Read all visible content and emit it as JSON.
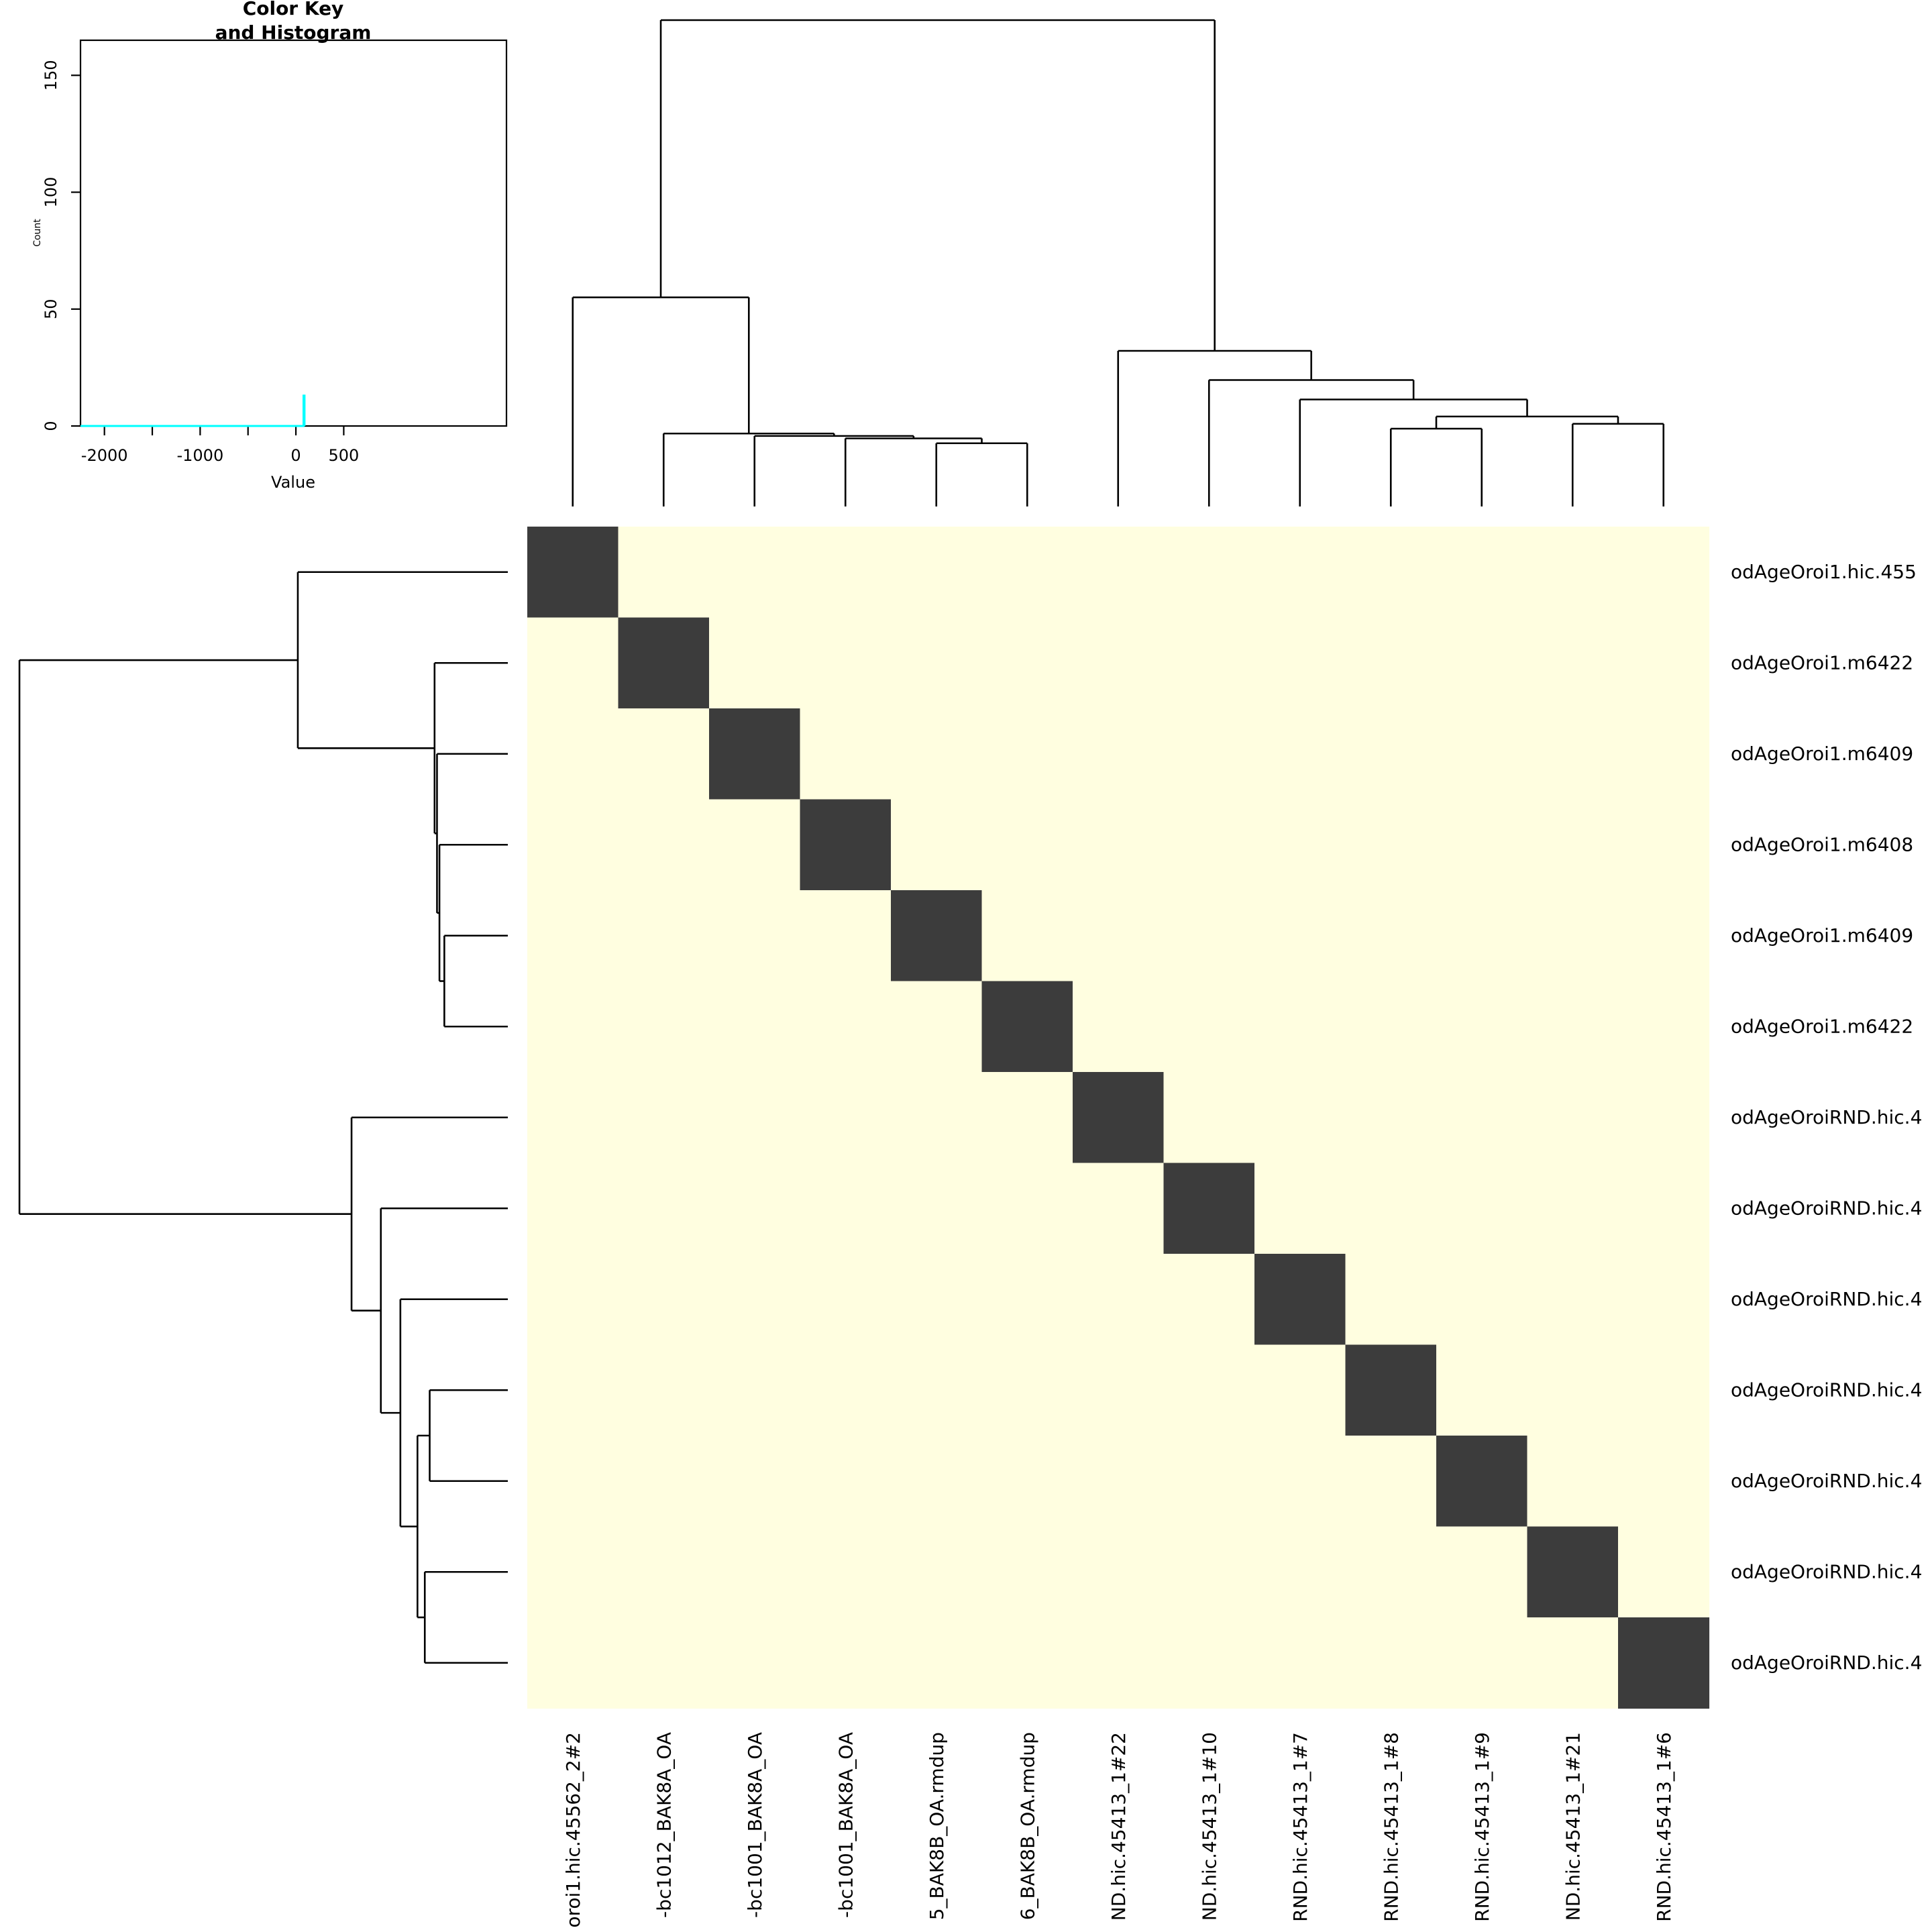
{
  "colors": {
    "heat_low": "#FFFEE0",
    "heat_high": "#3C3C3C",
    "histogram_line": "#00FFFF",
    "density_line": "#00FFFF",
    "axis": "#000000"
  },
  "chart_data": [
    {
      "type": "heatmap",
      "row_labels": [
        "odAgeOroi1.hic.455",
        "odAgeOroi1.m6422",
        "odAgeOroi1.m6409",
        "odAgeOroi1.m6408",
        "odAgeOroi1.m6409",
        "odAgeOroi1.m6422",
        "odAgeOroiRND.hic.4",
        "odAgeOroiRND.hic.4",
        "odAgeOroiRND.hic.4",
        "odAgeOroiRND.hic.4",
        "odAgeOroiRND.hic.4",
        "odAgeOroiRND.hic.4",
        "odAgeOroiRND.hic.4"
      ],
      "col_labels": [
        "oroi1.hic.45562_2#2",
        "-bc1012_BAK8A_OA",
        "-bc1001_BAK8A_OA",
        "-bc1001_BAK8A_OA",
        "5_BAK8B_OA.rmdup",
        "6_BAK8B_OA.rmdup",
        "ND.hic.45413_1#22",
        "ND.hic.45413_1#10",
        "RND.hic.45413_1#7",
        "RND.hic.45413_1#8",
        "RND.hic.45413_1#9",
        "ND.hic.45413_1#21",
        "RND.hic.45413_1#6"
      ],
      "matrix_pattern": "diagonal_high_offdiagonal_low",
      "diagonal_value": "high",
      "offdiagonal_value": "low",
      "column_dendrogram": {
        "merges": [
          {
            "left": 4,
            "right": 5,
            "height": 13
          },
          {
            "left": 3,
            "right": "m1",
            "height": 14
          },
          {
            "left": 2,
            "right": "m2",
            "height": 14.5
          },
          {
            "left": 1,
            "right": "m3",
            "height": 15
          },
          {
            "left": 0,
            "right": "m4",
            "height": 43
          },
          {
            "left": 9,
            "right": 10,
            "height": 16
          },
          {
            "left": 11,
            "right": 12,
            "height": 17
          },
          {
            "left": "m6",
            "right": "m7",
            "height": 18.5
          },
          {
            "left": 8,
            "right": "m8",
            "height": 22
          },
          {
            "left": 7,
            "right": "m9",
            "height": 26
          },
          {
            "left": 6,
            "right": "m10",
            "height": 32
          },
          {
            "left": "m5",
            "right": "m11",
            "height": 100
          }
        ]
      },
      "row_dendrogram": {
        "merges": [
          {
            "left": 4,
            "right": 5,
            "height": 13
          },
          {
            "left": 3,
            "right": "m1",
            "height": 14
          },
          {
            "left": 2,
            "right": "m2",
            "height": 14.5
          },
          {
            "left": 1,
            "right": "m3",
            "height": 15
          },
          {
            "left": 0,
            "right": "m4",
            "height": 43
          },
          {
            "left": 9,
            "right": 10,
            "height": 16
          },
          {
            "left": 11,
            "right": 12,
            "height": 17
          },
          {
            "left": "m6",
            "right": "m7",
            "height": 18.5
          },
          {
            "left": 8,
            "right": "m8",
            "height": 22
          },
          {
            "left": 7,
            "right": "m9",
            "height": 26
          },
          {
            "left": 6,
            "right": "m10",
            "height": 32
          },
          {
            "left": "m5",
            "right": "m11",
            "height": 100
          }
        ]
      }
    },
    {
      "type": "histogram",
      "title_line1": "Color Key",
      "title_line2": "and Histogram",
      "xlabel": "Value",
      "ylabel": "Count",
      "xlim": [
        -2250,
        2200
      ],
      "ylim": [
        0,
        165
      ],
      "x_ticks": [
        -2000,
        -1500,
        -1000,
        -500,
        0,
        500
      ],
      "x_tick_labels": [
        "-2000",
        "",
        "-1000",
        "",
        "0",
        "500"
      ],
      "y_ticks": [
        0,
        50,
        100,
        150
      ],
      "y_tick_labels": [
        "0",
        "50",
        "100",
        "150"
      ],
      "histogram_steps": [
        {
          "x": -2250,
          "y": 0
        },
        {
          "x": 80,
          "y": 0
        },
        {
          "x": 80,
          "y": 13
        },
        {
          "x": 90,
          "y": 13
        },
        {
          "x": 90,
          "y": 0
        }
      ],
      "density_points": [
        {
          "x": -2250,
          "y": 0
        },
        {
          "x": 90,
          "y": 0
        }
      ]
    }
  ]
}
